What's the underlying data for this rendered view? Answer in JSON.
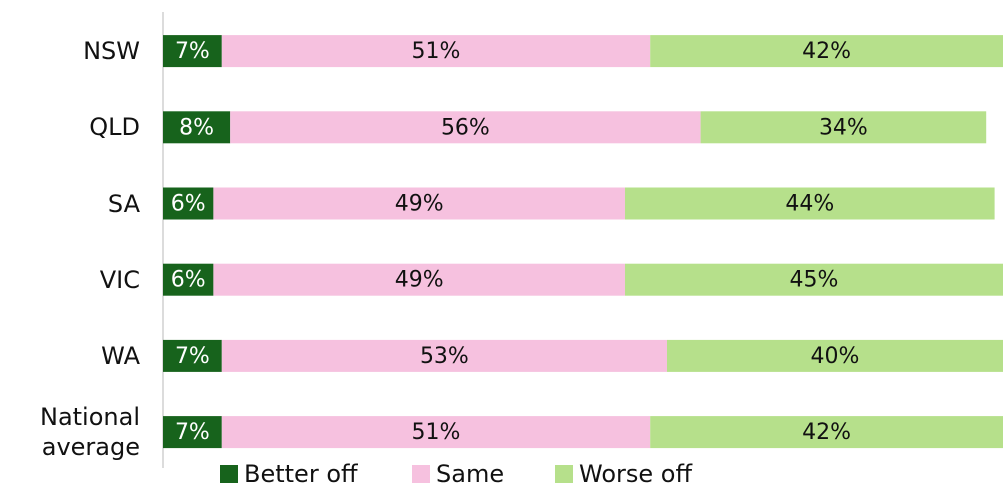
{
  "chart_data": {
    "type": "stacked-bar-horizontal",
    "categories": [
      "NSW",
      "QLD",
      "SA",
      "VIC",
      "WA",
      "National average"
    ],
    "xlim": [
      0,
      100
    ],
    "series": [
      {
        "name": "Better off",
        "color": "#17631c",
        "values": [
          7,
          8,
          6,
          6,
          7,
          7
        ],
        "value_labels": [
          "7%",
          "8%",
          "6%",
          "6%",
          "7%",
          "7%"
        ]
      },
      {
        "name": "Same",
        "color": "#f6c1df",
        "values": [
          51,
          56,
          49,
          49,
          53,
          51
        ],
        "value_labels": [
          "51%",
          "56%",
          "49%",
          "49%",
          "53%",
          "51%"
        ]
      },
      {
        "name": "Worse off",
        "color": "#b6e08b",
        "values": [
          42,
          34,
          44,
          45,
          40,
          42
        ],
        "value_labels": [
          "42%",
          "34%",
          "44%",
          "45%",
          "40%",
          "42%"
        ]
      }
    ],
    "legend": "bottom"
  }
}
